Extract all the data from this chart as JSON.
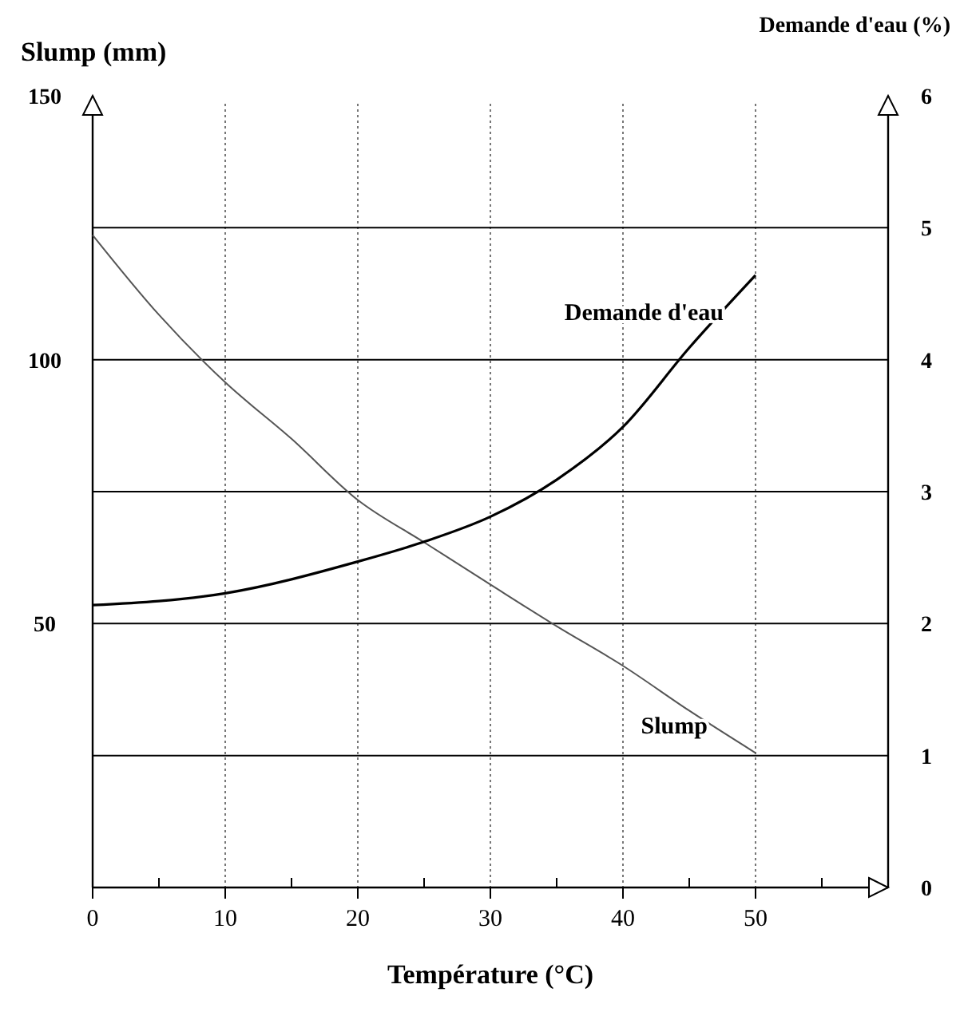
{
  "chart_data": {
    "type": "line",
    "xlabel": "Température (°C)",
    "ylabel": "Slump (mm)",
    "y2label": "Demande d'eau (%)",
    "xlim": [
      0,
      60
    ],
    "xticks": [
      0,
      {
        "value": 5,
        "label": null
      },
      10,
      {
        "value": 15,
        "label": null
      },
      20,
      {
        "value": 25,
        "label": null
      },
      30,
      {
        "value": 35,
        "label": null
      },
      40,
      {
        "value": 45,
        "label": null
      },
      50,
      {
        "value": 55,
        "label": null
      }
    ],
    "ylim": [
      0,
      150
    ],
    "yticks": [
      50,
      100,
      150
    ],
    "y2lim": [
      0,
      6
    ],
    "y2ticks": [
      0,
      1,
      2,
      3,
      4,
      5,
      6
    ],
    "grid": true,
    "series": [
      {
        "name": "Slump",
        "color": "#555555",
        "x": [
          0,
          5,
          10,
          15,
          20,
          25,
          30,
          35,
          40,
          45,
          50
        ],
        "values": [
          123.6,
          108.5,
          95.7,
          85,
          73.4,
          65.4,
          57.4,
          49.5,
          42,
          33.5,
          25.5
        ]
      },
      {
        "name": "Demande d'eau",
        "color": "#000000",
        "axis": "y2",
        "x": [
          0,
          10,
          20,
          25,
          30,
          35,
          40,
          45,
          50
        ],
        "values": [
          2.14,
          2.23,
          2.47,
          2.62,
          2.81,
          3.09,
          3.49,
          4.09,
          4.64
        ]
      }
    ]
  }
}
